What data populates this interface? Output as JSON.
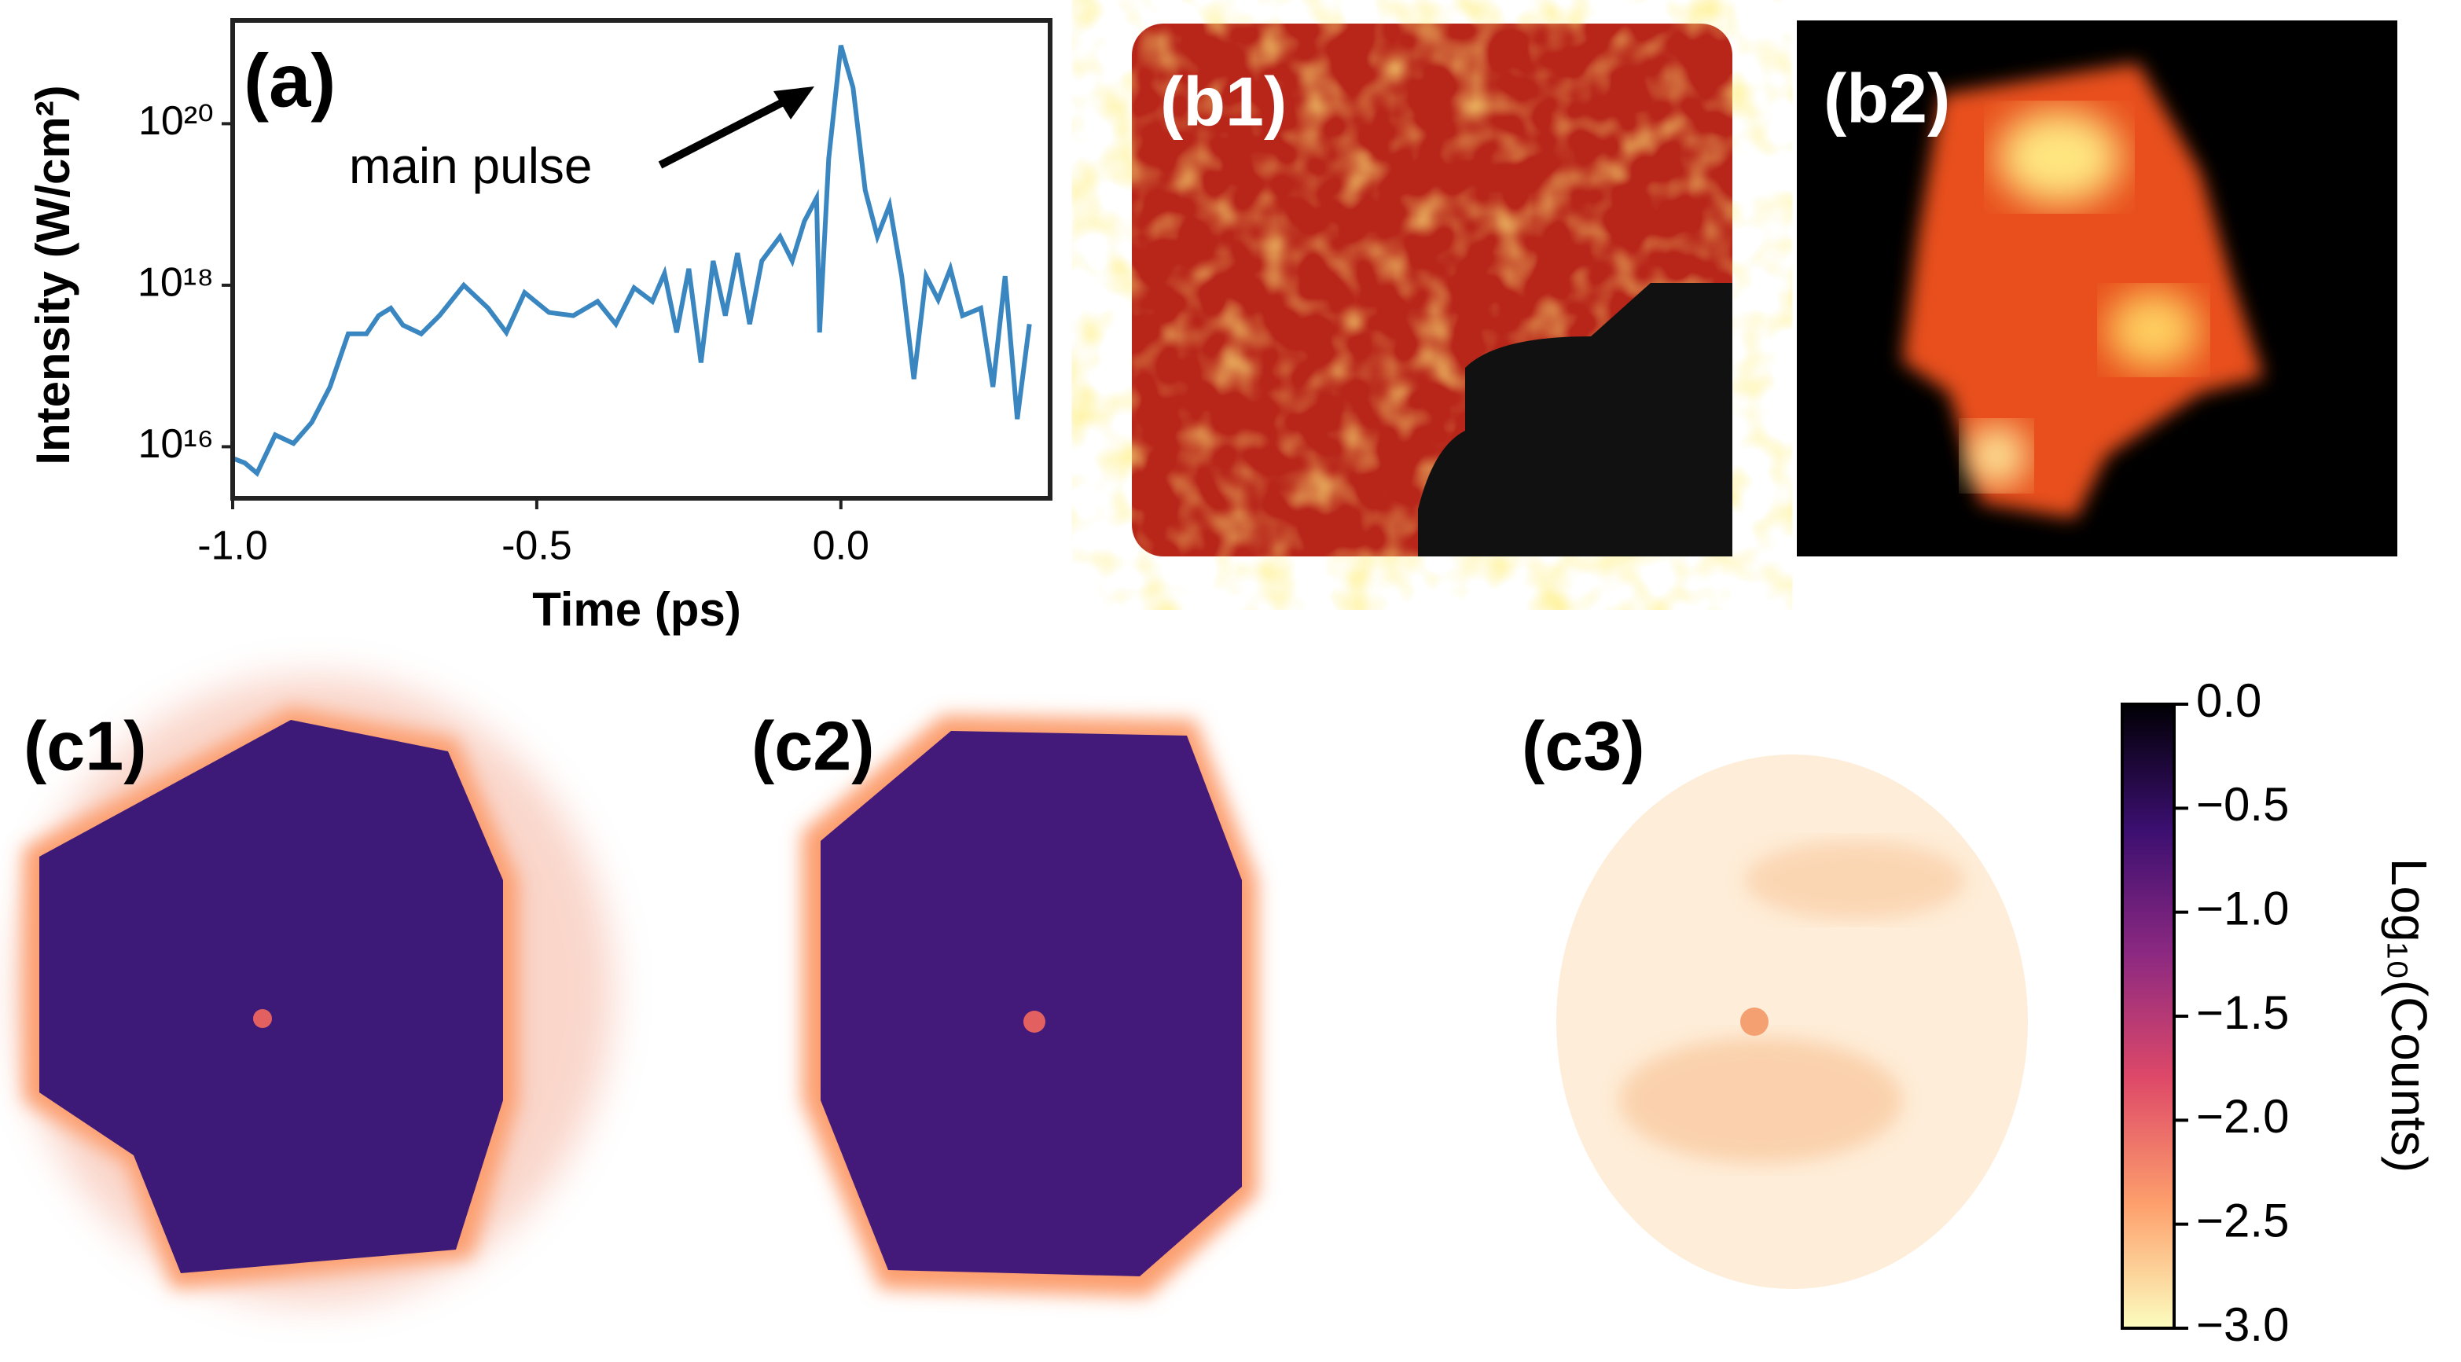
{
  "chart_data": [
    {
      "type": "line",
      "panel_label": "(a)",
      "annotation": "main pulse",
      "x_label": "Time (ps)",
      "y_label": "Intensity (W/cm²)",
      "color": "#3a86c0",
      "log_y": true,
      "xlim": [
        -1.0,
        0.344
      ],
      "xticks": [
        {
          "value": -1.0,
          "label": "-1.0"
        },
        {
          "value": -0.5,
          "label": "-0.5"
        },
        {
          "value": 0,
          "label": "0.0"
        }
      ],
      "ylim": [
        2300000000000000.0,
        1.9e+21
      ],
      "yticks": [
        {
          "value": 1e+16,
          "label": "10¹⁶"
        },
        {
          "value": 1e+18,
          "label": "10¹⁸"
        },
        {
          "value": 1e+20,
          "label": "10²⁰"
        }
      ],
      "x": [
        -1.0,
        -0.98,
        -0.96,
        -0.93,
        -0.9,
        -0.87,
        -0.84,
        -0.81,
        -0.78,
        -0.76,
        -0.74,
        -0.72,
        -0.69,
        -0.66,
        -0.62,
        -0.58,
        -0.55,
        -0.52,
        -0.48,
        -0.44,
        -0.4,
        -0.37,
        -0.34,
        -0.31,
        -0.29,
        -0.27,
        -0.25,
        -0.23,
        -0.21,
        -0.19,
        -0.17,
        -0.15,
        -0.13,
        -0.1,
        -0.08,
        -0.06,
        -0.04,
        -0.035,
        -0.02,
        0.0,
        0.02,
        0.04,
        0.06,
        0.08,
        0.1,
        0.12,
        0.14,
        0.16,
        0.18,
        0.2,
        0.23,
        0.25,
        0.27,
        0.29,
        0.31
      ],
      "values": [
        7200000000000000.0,
        6300000000000000.0,
        4700000000000000.0,
        1.4e+16,
        1.1e+16,
        2e+16,
        5.5e+16,
        2.5e+17,
        2.5e+17,
        4.2e+17,
        5.2e+17,
        3.2e+17,
        2.5e+17,
        4.2e+17,
        1e+18,
        5.2e+17,
        2.6e+17,
        8.1e+17,
        4.6e+17,
        4.2e+17,
        6.3e+17,
        3.3e+17,
        9.3e+17,
        6.3e+17,
        1.4e+18,
        2.6e+17,
        1.6e+18,
        1.1e+17,
        2e+18,
        4.2e+17,
        2.5e+18,
        3.3e+17,
        2e+18,
        4e+18,
        2e+18,
        6.2e+18,
        1.2e+19,
        2.6e+17,
        3.7e+19,
        9.3e+20,
        2.8e+20,
        1.5e+19,
        4e+18,
        9.8e+18,
        1.3e+18,
        6.9e+16,
        1.3e+18,
        6.6e+17,
        1.6e+18,
        4.2e+17,
        5.2e+17,
        5.5e+16,
        1.3e+18,
        2.2e+16,
        3.3e+17
      ]
    },
    {
      "type": "colorbar",
      "label": "Log₁₀(Counts)",
      "colors": [
        "#fcfdbf",
        "#fd9f6c",
        "#de4968",
        "#8c2981",
        "#3b0f70",
        "#000004"
      ],
      "ylim": [
        -3.0,
        0
      ],
      "yticks": [
        {
          "value": 0,
          "label": "0.0"
        },
        {
          "value": -0.5,
          "label": "−0.5"
        },
        {
          "value": -1.0,
          "label": "−1.0"
        },
        {
          "value": -1.5,
          "label": "−1.5"
        },
        {
          "value": -2.0,
          "label": "−2.0"
        },
        {
          "value": -2.5,
          "label": "−2.5"
        },
        {
          "value": -3.0,
          "label": "−3.0"
        }
      ]
    }
  ],
  "panels": [
    "(b1)",
    "(b2)",
    "(c1)",
    "(c2)",
    "(c3)"
  ]
}
